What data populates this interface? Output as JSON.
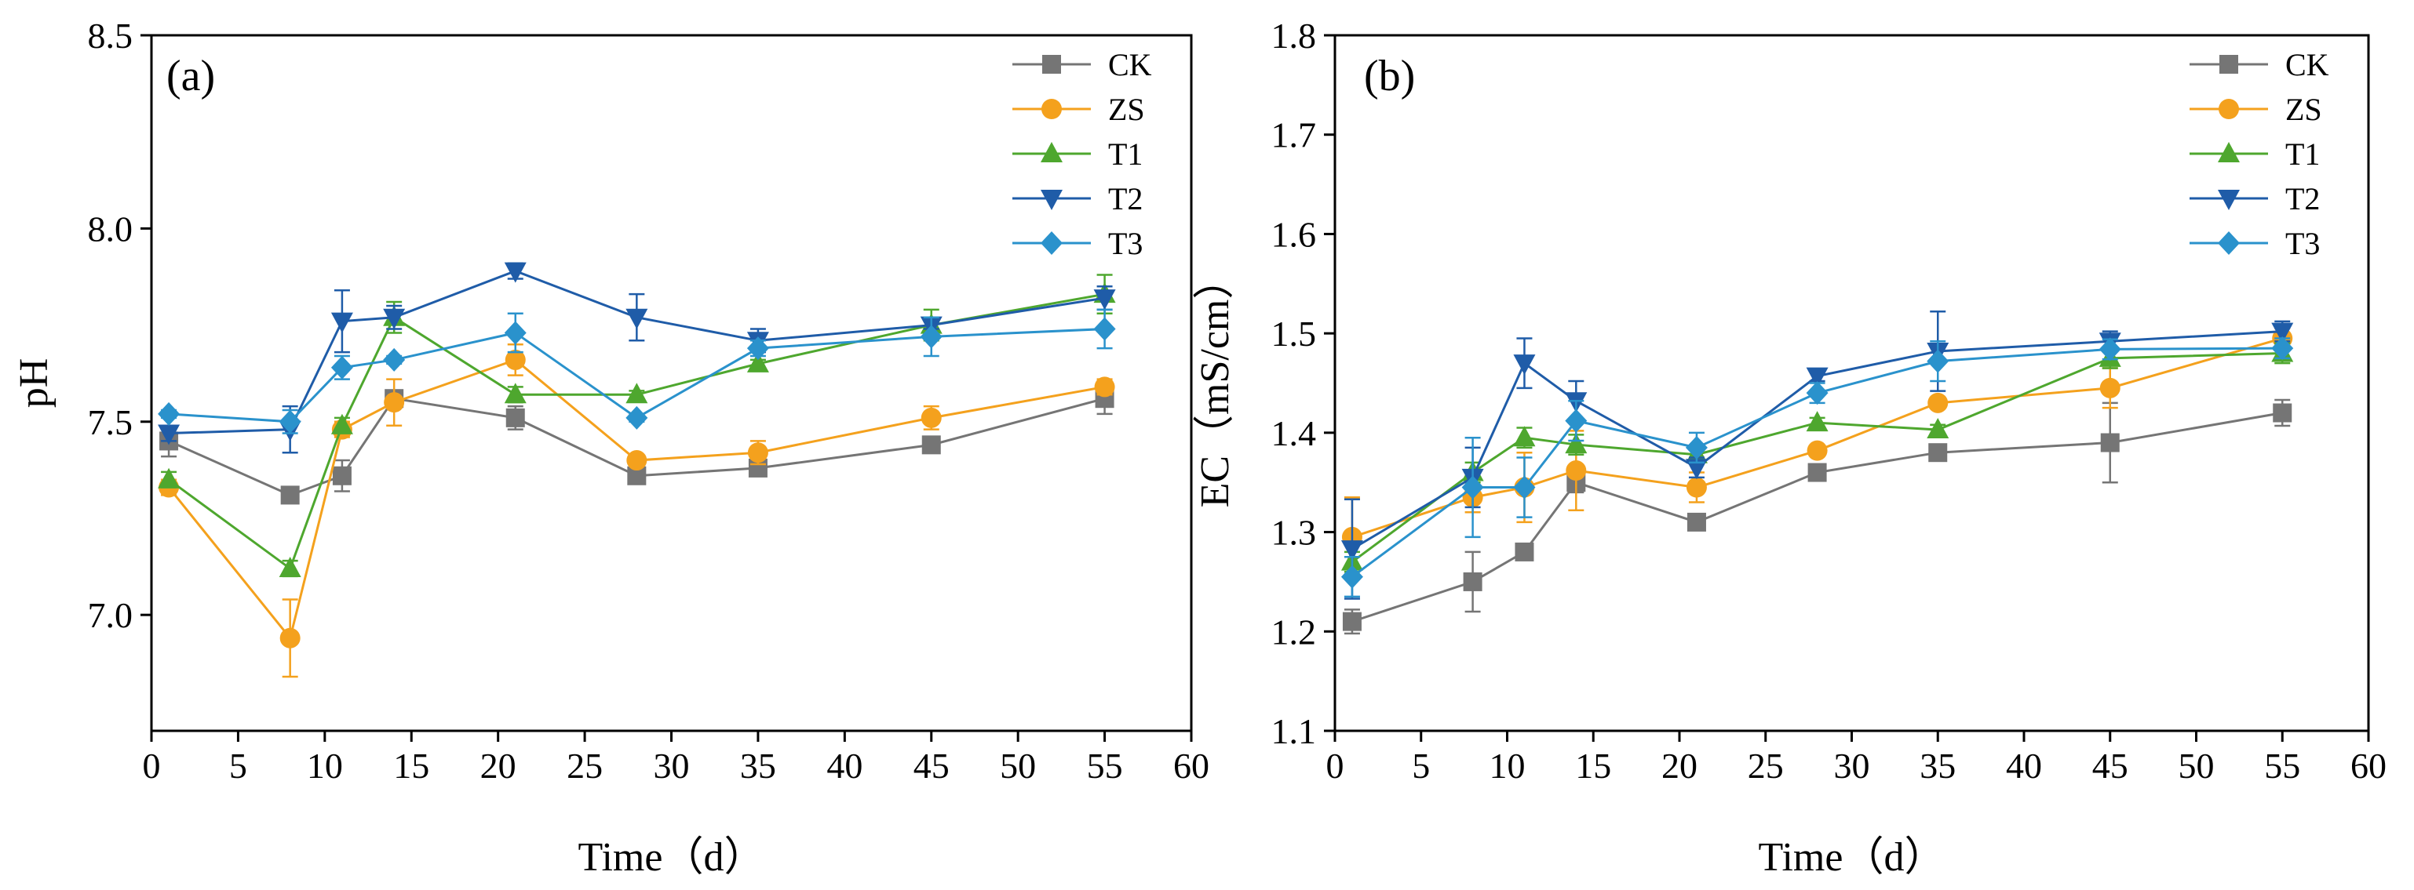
{
  "chart_data": [
    {
      "type": "line",
      "panel_label": "(a)",
      "xlabel": "Time（d）",
      "ylabel": "pH",
      "xlim": [
        0,
        60
      ],
      "ylim": [
        6.7,
        8.5
      ],
      "xticks": [
        0,
        5,
        10,
        15,
        20,
        25,
        30,
        35,
        40,
        45,
        50,
        55,
        60
      ],
      "yticks": [
        7.0,
        7.5,
        8.0,
        8.5
      ],
      "ytick_labels": [
        "7.0",
        "7.5",
        "8.0",
        "8.5"
      ],
      "legend_position": "top-right",
      "x": [
        1,
        8,
        11,
        14,
        21,
        28,
        35,
        45,
        55
      ],
      "series": [
        {
          "name": "CK",
          "color": "#757575",
          "marker": "square",
          "values": [
            7.45,
            7.31,
            7.36,
            7.56,
            7.51,
            7.36,
            7.38,
            7.44,
            7.56
          ],
          "errors": [
            0.04,
            0.01,
            0.04,
            0.02,
            0.03,
            0.01,
            0.02,
            0.01,
            0.04
          ]
        },
        {
          "name": "ZS",
          "color": "#f4a11d",
          "marker": "circle",
          "values": [
            7.33,
            6.94,
            7.48,
            7.55,
            7.66,
            7.4,
            7.42,
            7.51,
            7.59
          ],
          "errors": [
            0.02,
            0.1,
            0.02,
            0.06,
            0.04,
            0.01,
            0.03,
            0.03,
            0.02
          ]
        },
        {
          "name": "T1",
          "color": "#4ea72e",
          "marker": "triangle-up",
          "values": [
            7.35,
            7.12,
            7.49,
            7.77,
            7.57,
            7.57,
            7.65,
            7.75,
            7.83
          ],
          "errors": [
            0.02,
            0.02,
            0.02,
            0.04,
            0.02,
            0.01,
            0.01,
            0.04,
            0.05
          ]
        },
        {
          "name": "T2",
          "color": "#1f5ca8",
          "marker": "triangle-down",
          "values": [
            7.47,
            7.48,
            7.76,
            7.77,
            7.89,
            7.77,
            7.71,
            7.75,
            7.82
          ],
          "errors": [
            0.02,
            0.06,
            0.08,
            0.03,
            0.02,
            0.06,
            0.03,
            0.01,
            0.03
          ]
        },
        {
          "name": "T3",
          "color": "#2a92cc",
          "marker": "diamond",
          "values": [
            7.52,
            7.5,
            7.64,
            7.66,
            7.73,
            7.51,
            7.69,
            7.72,
            7.74
          ],
          "errors": [
            0.01,
            0.03,
            0.03,
            0.01,
            0.05,
            0.01,
            0.02,
            0.05,
            0.05
          ]
        }
      ]
    },
    {
      "type": "line",
      "panel_label": "(b)",
      "xlabel": "Time（d）",
      "ylabel": "EC（mS/cm）",
      "xlim": [
        0,
        60
      ],
      "ylim": [
        1.1,
        1.8
      ],
      "xticks": [
        0,
        5,
        10,
        15,
        20,
        25,
        30,
        35,
        40,
        45,
        50,
        55,
        60
      ],
      "yticks": [
        1.1,
        1.2,
        1.3,
        1.4,
        1.5,
        1.6,
        1.7,
        1.8
      ],
      "ytick_labels": [
        "1.1",
        "1.2",
        "1.3",
        "1.4",
        "1.5",
        "1.6",
        "1.7",
        "1.8"
      ],
      "legend_position": "top-right",
      "x": [
        1,
        8,
        11,
        14,
        21,
        28,
        35,
        45,
        55
      ],
      "series": [
        {
          "name": "CK",
          "color": "#757575",
          "marker": "square",
          "values": [
            1.21,
            1.25,
            1.28,
            1.35,
            1.31,
            1.36,
            1.38,
            1.39,
            1.42
          ],
          "errors": [
            0.012,
            0.03,
            0.005,
            0.01,
            0.005,
            0.005,
            0.005,
            0.04,
            0.013
          ]
        },
        {
          "name": "ZS",
          "color": "#f4a11d",
          "marker": "circle",
          "values": [
            1.295,
            1.335,
            1.345,
            1.362,
            1.345,
            1.382,
            1.43,
            1.445,
            1.495
          ],
          "errors": [
            0.04,
            0.015,
            0.035,
            0.04,
            0.015,
            0.005,
            0.005,
            0.02,
            0.01
          ]
        },
        {
          "name": "T1",
          "color": "#4ea72e",
          "marker": "triangle-up",
          "values": [
            1.27,
            1.36,
            1.395,
            1.388,
            1.378,
            1.41,
            1.403,
            1.475,
            1.48
          ],
          "errors": [
            0.01,
            0.01,
            0.01,
            0.01,
            0.005,
            0.005,
            0.005,
            0.01,
            0.01
          ]
        },
        {
          "name": "T2",
          "color": "#1f5ca8",
          "marker": "triangle-down",
          "values": [
            1.283,
            1.355,
            1.47,
            1.432,
            1.365,
            1.457,
            1.482,
            1.492,
            1.502
          ],
          "errors": [
            0.05,
            0.03,
            0.025,
            0.02,
            0.01,
            0.005,
            0.04,
            0.01,
            0.01
          ]
        },
        {
          "name": "T3",
          "color": "#2a92cc",
          "marker": "diamond",
          "values": [
            1.255,
            1.345,
            1.345,
            1.412,
            1.385,
            1.44,
            1.472,
            1.484,
            1.485
          ],
          "errors": [
            0.02,
            0.05,
            0.03,
            0.02,
            0.015,
            0.01,
            0.02,
            0.01,
            0.01
          ]
        }
      ]
    }
  ]
}
